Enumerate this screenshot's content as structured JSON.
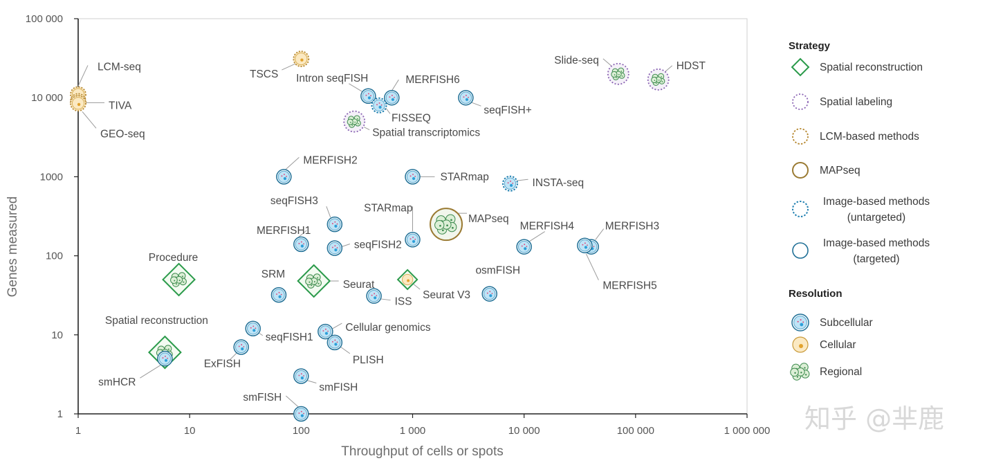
{
  "colors": {
    "subcellular_fill": "#bfe4f6",
    "subcellular_stroke": "#1f6f96",
    "cellular_fill": "#fbe9c2",
    "cellular_stroke": "#b5862d",
    "regional_fill": "#dcefd6",
    "regional_stroke": "#3c8a4d",
    "reconstruction": "#2a9a4a",
    "labeling": "#8a63b3",
    "lcm": "#b5862d",
    "mapseq": "#9a7a32",
    "untargeted": "#1f7fb0",
    "targeted": "#1f6f96"
  },
  "chart_data": {
    "type": "scatter",
    "title": "",
    "xlabel": "Throughput of cells or spots",
    "ylabel": "Genes measured",
    "xscale": "log",
    "yscale": "log",
    "xlim": [
      1,
      1000000
    ],
    "ylim": [
      1,
      100000
    ],
    "xticks": [
      1,
      10,
      100,
      1000,
      10000,
      100000,
      1000000
    ],
    "yticks": [
      1,
      10,
      100,
      1000,
      10000,
      100000
    ],
    "xtick_labels": [
      "1",
      "10",
      "100",
      "1 000",
      "10 000",
      "100 000",
      "1 000 000"
    ],
    "ytick_labels": [
      "1",
      "10",
      "100",
      "1000",
      "10 000",
      "100 000"
    ],
    "grid": false,
    "legend": {
      "strategy_title": "Strategy",
      "strategy": [
        {
          "shape": "diamond",
          "label": "Spatial reconstruction"
        },
        {
          "shape": "circle-dotted-purple",
          "label": "Spatial labeling"
        },
        {
          "shape": "circle-dotted-brown",
          "label": "LCM-based methods"
        },
        {
          "shape": "circle-solid-brown",
          "label": "MAPseq"
        },
        {
          "shape": "circle-dotted-blue",
          "label": "Image-based methods",
          "label2": "(untargeted)"
        },
        {
          "shape": "circle-solid-blue",
          "label": "Image-based methods",
          "label2": "(targeted)"
        }
      ],
      "resolution_title": "Resolution",
      "resolution": [
        {
          "kind": "subcellular",
          "label": "Subcellular"
        },
        {
          "kind": "cellular",
          "label": "Cellular"
        },
        {
          "kind": "regional",
          "label": "Regional"
        }
      ],
      "placement": "right"
    },
    "points": [
      {
        "label": "LCM-seq",
        "x": 1,
        "y": 11000,
        "strategy": "lcm",
        "resolution": "cellular"
      },
      {
        "label": "TIVA",
        "x": 1,
        "y": 9000,
        "strategy": "lcm",
        "resolution": "cellular"
      },
      {
        "label": "GEO-seq",
        "x": 1,
        "y": 8500,
        "strategy": "lcm",
        "resolution": "cellular"
      },
      {
        "label": "TSCS",
        "x": 100,
        "y": 31000,
        "strategy": "lcm",
        "resolution": "cellular"
      },
      {
        "label": "Intron seqFISH",
        "x": 400,
        "y": 10500,
        "strategy": "image-targeted",
        "resolution": "subcellular"
      },
      {
        "label": "MERFISH6",
        "x": 650,
        "y": 10000,
        "strategy": "image-targeted",
        "resolution": "subcellular"
      },
      {
        "label": "FISSEQ",
        "x": 500,
        "y": 8000,
        "strategy": "image-untargeted",
        "resolution": "subcellular"
      },
      {
        "label": "seqFISH+",
        "x": 3000,
        "y": 10000,
        "strategy": "image-targeted",
        "resolution": "subcellular"
      },
      {
        "label": "Spatial transcriptomics",
        "x": 300,
        "y": 5000,
        "strategy": "labeling",
        "resolution": "regional"
      },
      {
        "label": "Slide-seq",
        "x": 70000,
        "y": 20000,
        "strategy": "labeling",
        "resolution": "regional"
      },
      {
        "label": "HDST",
        "x": 160000,
        "y": 17000,
        "strategy": "labeling",
        "resolution": "regional"
      },
      {
        "label": "MERFISH2",
        "x": 70,
        "y": 1000,
        "strategy": "image-targeted",
        "resolution": "subcellular"
      },
      {
        "label": "STARmap",
        "x": 1000,
        "y": 1000,
        "strategy": "image-targeted",
        "resolution": "subcellular"
      },
      {
        "label": "INSTA-seq",
        "x": 7500,
        "y": 820,
        "strategy": "image-untargeted",
        "resolution": "subcellular"
      },
      {
        "label": "seqFISH3",
        "x": 200,
        "y": 250,
        "strategy": "image-targeted",
        "resolution": "subcellular"
      },
      {
        "label": "STARmap",
        "x": 1000,
        "y": 160,
        "strategy": "image-targeted",
        "resolution": "subcellular"
      },
      {
        "label": "MAPseq",
        "x": 2000,
        "y": 250,
        "strategy": "mapseq",
        "resolution": "regional"
      },
      {
        "label": "MERFISH1",
        "x": 100,
        "y": 140,
        "strategy": "image-targeted",
        "resolution": "subcellular"
      },
      {
        "label": "seqFISH2",
        "x": 200,
        "y": 125,
        "strategy": "image-targeted",
        "resolution": "subcellular"
      },
      {
        "label": "MERFISH4",
        "x": 10000,
        "y": 130,
        "strategy": "image-targeted",
        "resolution": "subcellular"
      },
      {
        "label": "MERFISH3",
        "x": 40000,
        "y": 130,
        "strategy": "image-targeted",
        "resolution": "subcellular"
      },
      {
        "label": "MERFISH5",
        "x": 35000,
        "y": 135,
        "strategy": "image-targeted",
        "resolution": "subcellular"
      },
      {
        "label": "Procedure",
        "x": 8,
        "y": 50,
        "strategy": "reconstruction",
        "resolution": "regional"
      },
      {
        "label": "Seurat",
        "x": 130,
        "y": 48,
        "strategy": "reconstruction",
        "resolution": "regional"
      },
      {
        "label": "Seurat V3",
        "x": 900,
        "y": 50,
        "strategy": "reconstruction",
        "resolution": "cellular"
      },
      {
        "label": "SRM",
        "x": 63,
        "y": 32,
        "strategy": "image-targeted",
        "resolution": "subcellular"
      },
      {
        "label": "ISS",
        "x": 450,
        "y": 31,
        "strategy": "image-targeted",
        "resolution": "subcellular"
      },
      {
        "label": "osmFISH",
        "x": 4900,
        "y": 33,
        "strategy": "image-targeted",
        "resolution": "subcellular"
      },
      {
        "label": "seqFISH1",
        "x": 37,
        "y": 12,
        "strategy": "image-targeted",
        "resolution": "subcellular"
      },
      {
        "label": "Cellular genomics",
        "x": 165,
        "y": 11,
        "strategy": "image-targeted",
        "resolution": "subcellular"
      },
      {
        "label": "PLISH",
        "x": 200,
        "y": 8,
        "strategy": "image-targeted",
        "resolution": "subcellular"
      },
      {
        "label": "ExFISH",
        "x": 29,
        "y": 7,
        "strategy": "image-targeted",
        "resolution": "subcellular"
      },
      {
        "label": "Spatial reconstruction",
        "x": 6,
        "y": 6,
        "strategy": "reconstruction",
        "resolution": "regional"
      },
      {
        "label": "smHCR",
        "x": 6,
        "y": 5,
        "strategy": "image-targeted",
        "resolution": "subcellular"
      },
      {
        "label": "smFISH",
        "x": 100,
        "y": 3,
        "strategy": "image-targeted",
        "resolution": "subcellular"
      },
      {
        "label": "smFISH",
        "x": 100,
        "y": 1,
        "strategy": "image-targeted",
        "resolution": "subcellular"
      }
    ]
  },
  "watermark": {
    "text": "知乎 @芈鹿"
  }
}
